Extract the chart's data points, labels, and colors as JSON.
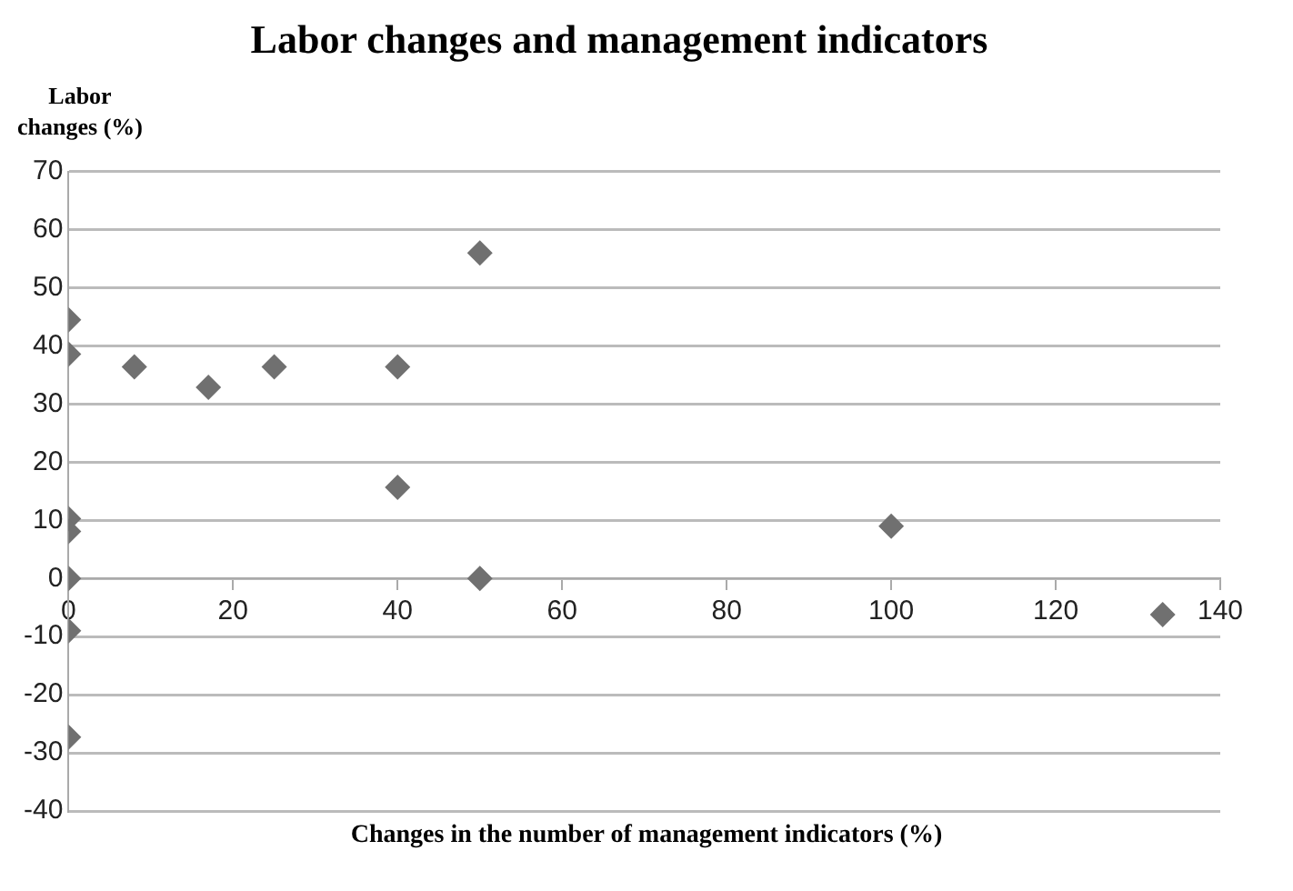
{
  "chart_data": {
    "type": "scatter",
    "title": "Labor changes and management indicators",
    "xlabel": "Changes in the number of management indicators (%)",
    "ylabel": "Labor changes (%)",
    "x": [
      0,
      0,
      0,
      0,
      0,
      0,
      0,
      8,
      17,
      25,
      40,
      40,
      50,
      50,
      100,
      133
    ],
    "series": [
      {
        "color": "#707070",
        "values": [
          44.5,
          38.6,
          10.3,
          8.1,
          0,
          -9,
          -27.3,
          36.4,
          32.9,
          36.4,
          36.4,
          15.7,
          56,
          0,
          9,
          -6.2
        ]
      }
    ],
    "xlim": [
      0,
      140
    ],
    "xticks": [
      0,
      20,
      40,
      60,
      80,
      100,
      120,
      140
    ],
    "ylim": [
      -40,
      70
    ],
    "yticks": [
      -40,
      -30,
      -20,
      -10,
      0,
      10,
      20,
      30,
      40,
      50,
      60,
      70
    ],
    "grid": "y",
    "legend": false,
    "marker": "diamond"
  }
}
